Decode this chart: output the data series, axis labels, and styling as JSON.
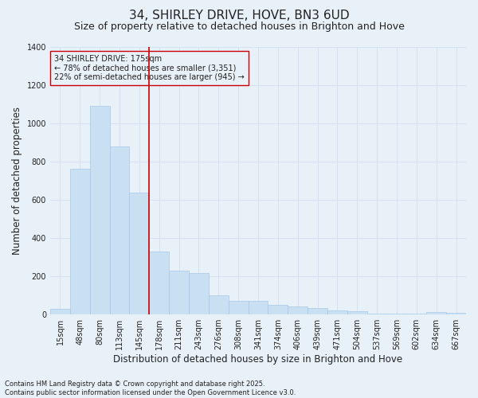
{
  "title": "34, SHIRLEY DRIVE, HOVE, BN3 6UD",
  "subtitle": "Size of property relative to detached houses in Brighton and Hove",
  "xlabel": "Distribution of detached houses by size in Brighton and Hove",
  "ylabel": "Number of detached properties",
  "footer_line1": "Contains HM Land Registry data © Crown copyright and database right 2025.",
  "footer_line2": "Contains public sector information licensed under the Open Government Licence v3.0.",
  "annotation_line1": "34 SHIRLEY DRIVE: 175sqm",
  "annotation_line2": "← 78% of detached houses are smaller (3,351)",
  "annotation_line3": "22% of semi-detached houses are larger (945) →",
  "bar_color": "#c9dff2",
  "bar_edge_color": "#a8c8e8",
  "property_line_color": "#cc0000",
  "annotation_box_edge_color": "#cc0000",
  "grid_color": "#d0dff0",
  "background_color": "#e8f0f8",
  "text_color": "#222222",
  "categories": [
    "15sqm",
    "48sqm",
    "80sqm",
    "113sqm",
    "145sqm",
    "178sqm",
    "211sqm",
    "243sqm",
    "276sqm",
    "308sqm",
    "341sqm",
    "374sqm",
    "406sqm",
    "439sqm",
    "471sqm",
    "504sqm",
    "537sqm",
    "569sqm",
    "602sqm",
    "634sqm",
    "667sqm"
  ],
  "values": [
    30,
    760,
    1090,
    880,
    635,
    330,
    230,
    215,
    100,
    70,
    68,
    50,
    40,
    33,
    18,
    17,
    5,
    4,
    2,
    12,
    7
  ],
  "ylim": [
    0,
    1400
  ],
  "yticks": [
    0,
    200,
    400,
    600,
    800,
    1000,
    1200,
    1400
  ],
  "property_bar_index": 5,
  "title_fontsize": 11,
  "subtitle_fontsize": 9,
  "axis_label_fontsize": 8.5,
  "tick_fontsize": 7,
  "annotation_fontsize": 7,
  "footer_fontsize": 6
}
